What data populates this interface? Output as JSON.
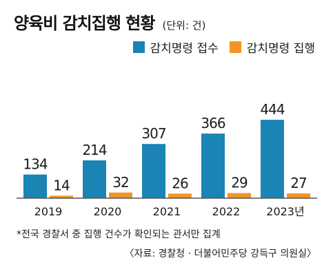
{
  "header": {
    "title": "양육비 감치집행 현황",
    "unit": "(단위: 건)"
  },
  "colors": {
    "series_receipt": "#1a84b4",
    "series_execution": "#f39426",
    "baseline": "#555555"
  },
  "chart_data": {
    "type": "bar",
    "categories": [
      "2019",
      "2020",
      "2021",
      "2022",
      "2023년"
    ],
    "series": [
      {
        "name": "감치명령 접수",
        "values": [
          134,
          214,
          307,
          366,
          444
        ]
      },
      {
        "name": "감치명령 집행",
        "values": [
          14,
          32,
          26,
          29,
          27
        ]
      }
    ],
    "ylim": [
      0,
      460
    ],
    "legend": "top-right",
    "grid": false
  },
  "footer": {
    "note": "*전국 경찰서 중 집행 건수가 확인되는 관서만 집계",
    "source": "〈자료: 경찰청 · 더불어민주당 강득구 의원실〉"
  }
}
